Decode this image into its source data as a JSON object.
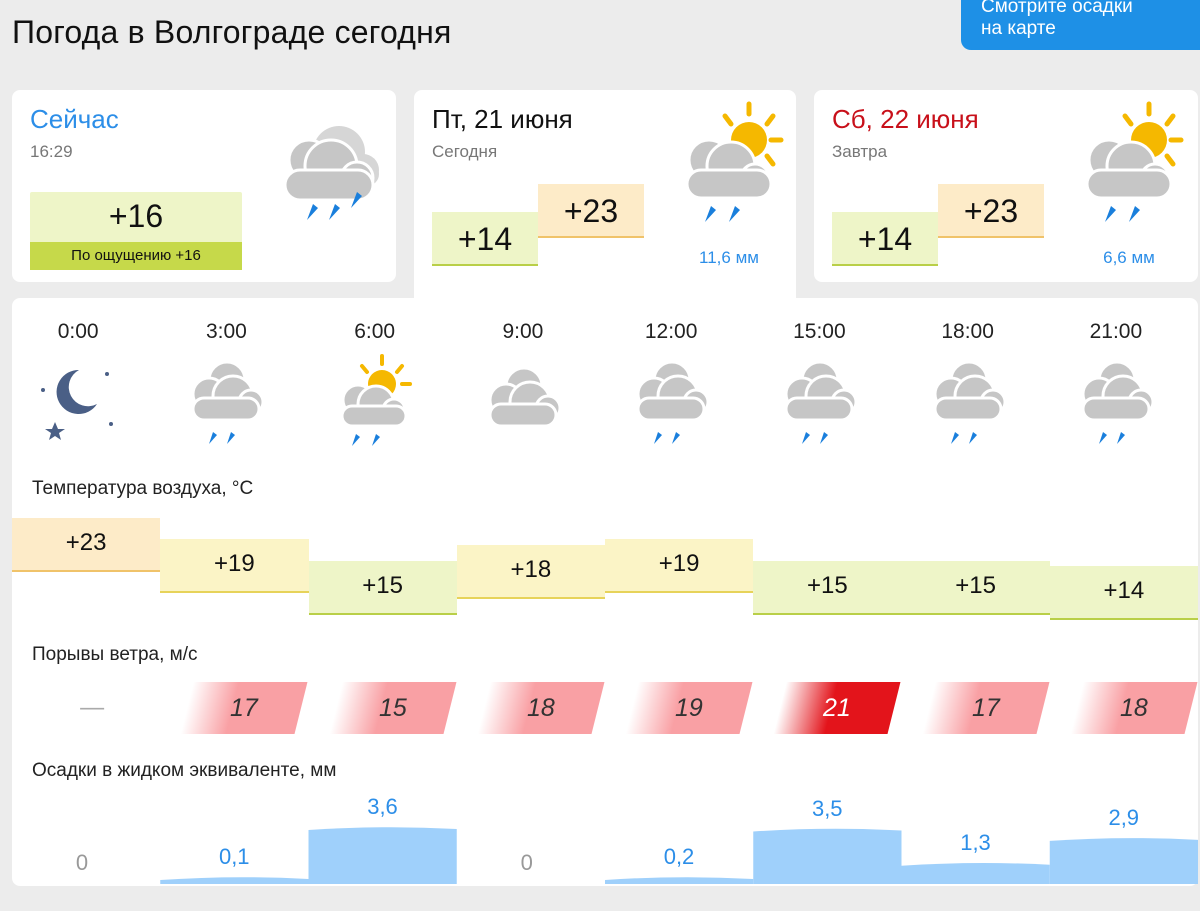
{
  "header": {
    "title": "Погода в Волгограде сегодня",
    "map_button": [
      "Смотрите осадки",
      "на карте"
    ]
  },
  "now": {
    "label": "Сейчас",
    "time": "16:29",
    "temp": "+16",
    "feels": "По ощущению +16",
    "icon": "cloud-rain-icon"
  },
  "today": {
    "date": "Пт, 21 июня",
    "sub": "Сегодня",
    "low": "+14",
    "high": "+23",
    "precip": "11,6 мм",
    "icon": "sun-cloud-rain-icon"
  },
  "tomorrow": {
    "date": "Сб, 22 июня",
    "sub": "Завтра",
    "low": "+14",
    "high": "+23",
    "precip": "6,6 мм",
    "icon": "sun-cloud-rain-icon"
  },
  "hourly": {
    "times": [
      "0:00",
      "3:00",
      "6:00",
      "9:00",
      "12:00",
      "15:00",
      "18:00",
      "21:00"
    ],
    "icons": [
      "moon-stars-icon",
      "cloud-rain-icon",
      "sun-cloud-rain-icon",
      "cloud-icon",
      "cloud-rain-icon",
      "cloud-rain-icon",
      "cloud-rain-icon",
      "cloud-rain-icon"
    ],
    "temp_label": "Температура воздуха, °C",
    "temps": [
      "+23",
      "+19",
      "+15",
      "+18",
      "+19",
      "+15",
      "+15",
      "+14"
    ],
    "temp_values": [
      23,
      19,
      15,
      18,
      19,
      15,
      15,
      14
    ],
    "wind_label": "Порывы ветра, м/с",
    "wind": [
      "—",
      "17",
      "15",
      "18",
      "19",
      "21",
      "17",
      "18"
    ],
    "wind_values": [
      null,
      17,
      15,
      18,
      19,
      21,
      17,
      18
    ],
    "precip_label": "Осадки в жидком эквиваленте, мм",
    "precip": [
      "0",
      "0,1",
      "3,6",
      "0",
      "0,2",
      "3,5",
      "1,3",
      "2,9"
    ],
    "precip_values": [
      0,
      0.1,
      3.6,
      0,
      0.2,
      3.5,
      1.3,
      2.9
    ]
  },
  "colors": {
    "accent": "#1e90e6",
    "rain": "#2c8ee8",
    "wind_max": "#e3141b",
    "wind_low": "#f9a0a4"
  }
}
